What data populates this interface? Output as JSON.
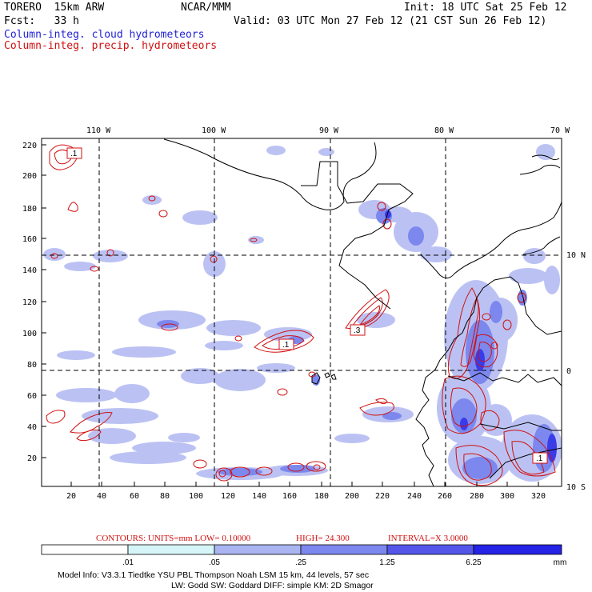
{
  "header": {
    "model": "TORERO  15km ARW",
    "center": "NCAR/MMM",
    "init": "Init: 18 UTC Sat 25 Feb 12",
    "fcst": "Fcst:   33 h",
    "valid": "Valid: 03 UTC Mon 27 Feb 12 (21 CST Sun 26 Feb 12)",
    "legend_cloud": "Column-integ. cloud hydrometeors",
    "legend_precip": "Column-integ. precip. hydrometeors"
  },
  "lon_labels": [
    "110 W",
    "100 W",
    "90 W",
    "80 W",
    "70 W"
  ],
  "lat_labels": [
    "10 N",
    "0",
    "10 S"
  ],
  "x_ticks": [
    "20",
    "40",
    "60",
    "80",
    "100",
    "120",
    "140",
    "160",
    "180",
    "200",
    "220",
    "240",
    "260",
    "280",
    "300",
    "320"
  ],
  "y_ticks": [
    "220",
    "200",
    "180",
    "160",
    "140",
    "120",
    "100",
    "80",
    "60",
    "40",
    "20"
  ],
  "contour_boxes": [
    ".1",
    ".1",
    ".3",
    ".1"
  ],
  "contours_line": {
    "label": "CONTOURS:  UNITS=mm  LOW= 0.10000",
    "high": "HIGH=  24.300",
    "interval": "INTERVAL=X  3.0000"
  },
  "color_scale": {
    "labels": [
      ".01",
      ".05",
      ".25",
      "1.25",
      "6.25"
    ],
    "unit": "mm",
    "colors": [
      "#ffffff",
      "#d6f5f8",
      "#a9b4f0",
      "#7c88ee",
      "#5456ea",
      "#2523e6"
    ]
  },
  "footer": {
    "line1": "Model Info: V3.3.1    Tiedtke YSU PBL   Thompson     Noah LSM  15 km,   44 levels,   57 sec",
    "line2": "LW: Godd SW: Goddard DIFF: simple KM: 2D Smagor"
  },
  "colors": {
    "cloud_text": "#1f1fd6",
    "precip_text": "#d01010",
    "coast": "#000000"
  }
}
